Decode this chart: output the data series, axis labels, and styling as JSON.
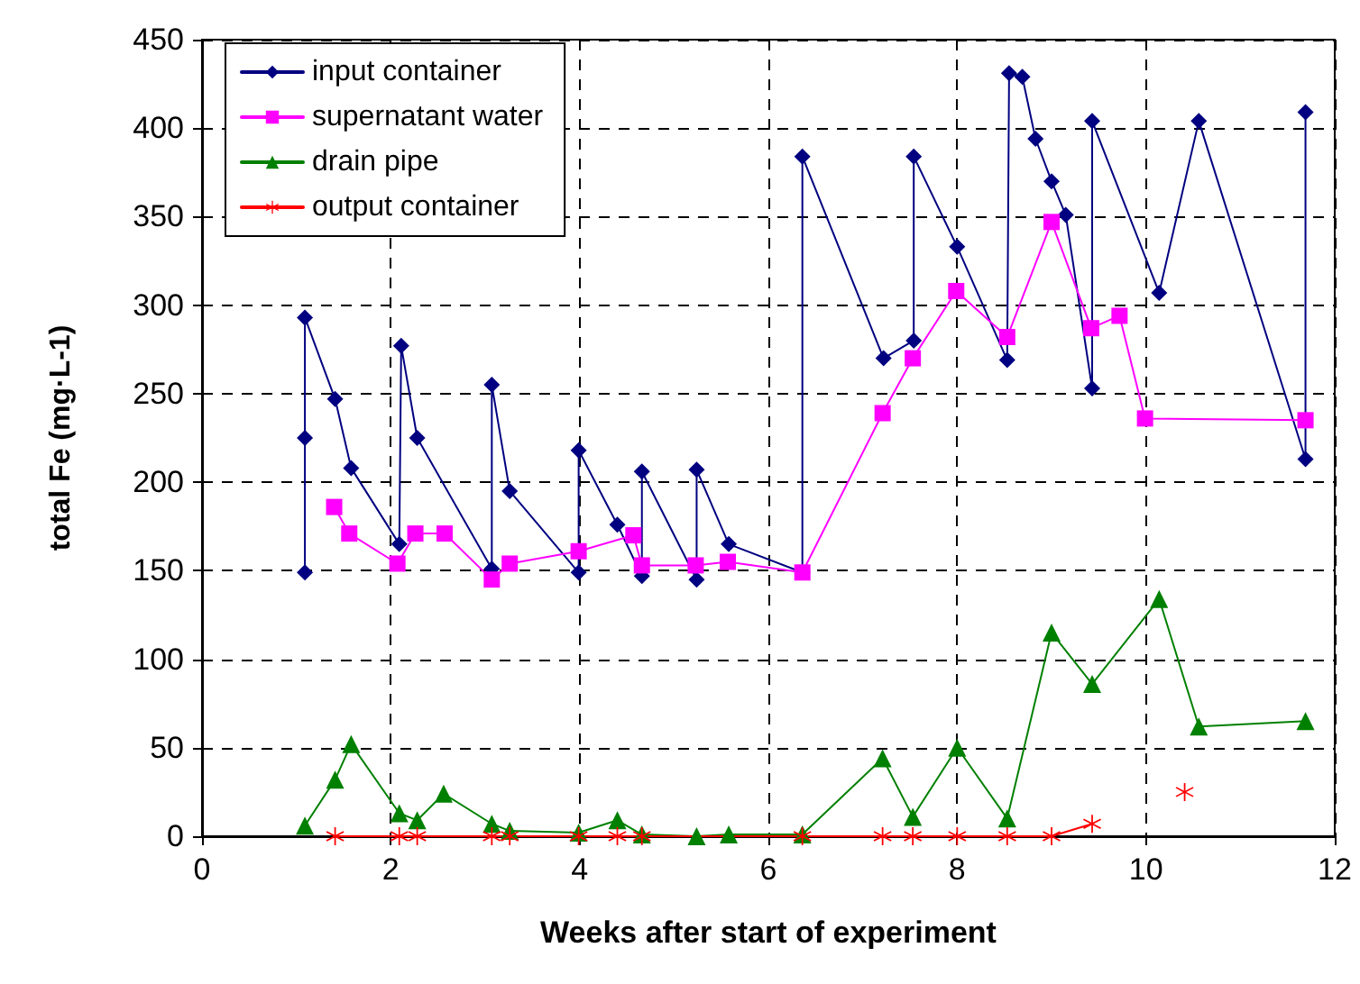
{
  "chart_data": {
    "type": "line",
    "xlabel": "Weeks after start of experiment",
    "ylabel": "total Fe (mg·L-1)",
    "xlim": [
      0,
      12
    ],
    "xticks": [
      0,
      2,
      4,
      6,
      8,
      10,
      12
    ],
    "ylim": [
      0,
      450
    ],
    "yticks": [
      0,
      50,
      100,
      150,
      200,
      250,
      300,
      350,
      400,
      450
    ],
    "grid": true,
    "legend": "top left",
    "line_style": "solid",
    "series": [
      {
        "name": "input container",
        "color": "#000080",
        "marker": "diamond",
        "x": [
          1.09,
          1.09,
          1.09,
          1.41,
          1.58,
          2.09,
          2.11,
          2.28,
          3.07,
          3.07,
          3.26,
          3.99,
          3.99,
          4.4,
          4.66,
          4.66,
          5.24,
          5.24,
          5.58,
          6.36,
          6.36,
          7.22,
          7.54,
          7.54,
          8.0,
          8.53,
          8.55,
          8.69,
          8.83,
          9.0,
          9.15,
          9.43,
          9.43,
          10.14,
          10.56,
          11.69,
          11.69
        ],
        "values": [
          149,
          225,
          293,
          247,
          208,
          165,
          277,
          225,
          151,
          255,
          195,
          149,
          218,
          176,
          147,
          206,
          145,
          207,
          165,
          149,
          384,
          270,
          280,
          384,
          333,
          269,
          431,
          429,
          394,
          370,
          351,
          253,
          404,
          307,
          404,
          213,
          409
        ]
      },
      {
        "name": "supernatant water",
        "color": "#ff00ff",
        "marker": "square",
        "x": [
          1.4,
          1.56,
          2.07,
          2.26,
          2.57,
          3.07,
          3.26,
          3.99,
          4.57,
          4.66,
          5.23,
          5.57,
          6.36,
          7.21,
          7.53,
          7.99,
          8.53,
          9.0,
          9.42,
          9.72,
          9.99,
          11.69
        ],
        "values": [
          186,
          171,
          154,
          171,
          171,
          145,
          154,
          161,
          170,
          153,
          153,
          155,
          149,
          239,
          270,
          308,
          282,
          347,
          287,
          294,
          236,
          235
        ]
      },
      {
        "name": "drain pipe",
        "color": "#008000",
        "marker": "triangle",
        "x": [
          1.09,
          1.41,
          1.58,
          2.09,
          2.28,
          2.56,
          3.07,
          3.26,
          3.99,
          4.4,
          4.66,
          5.24,
          5.58,
          6.36,
          7.21,
          7.53,
          8.0,
          8.53,
          9.0,
          9.43,
          10.14,
          10.56,
          11.69
        ],
        "values": [
          6,
          32,
          52,
          13,
          9,
          24,
          7,
          3,
          2,
          9,
          1,
          0,
          1,
          1,
          44,
          11,
          50,
          10,
          115,
          86,
          134,
          62,
          65
        ]
      },
      {
        "name": "output container",
        "color": "#ff0000",
        "marker": "star",
        "x": [
          1.41,
          2.09,
          2.28,
          3.07,
          3.26,
          3.99,
          4.4,
          4.66,
          6.36,
          7.21,
          7.53,
          8.0,
          8.53,
          9.0,
          9.43,
          10.14,
          10.41
        ],
        "values": [
          0,
          0,
          0,
          0,
          0,
          0,
          0,
          0,
          0,
          0,
          0,
          0,
          0,
          0,
          7,
          null,
          25
        ]
      }
    ]
  }
}
